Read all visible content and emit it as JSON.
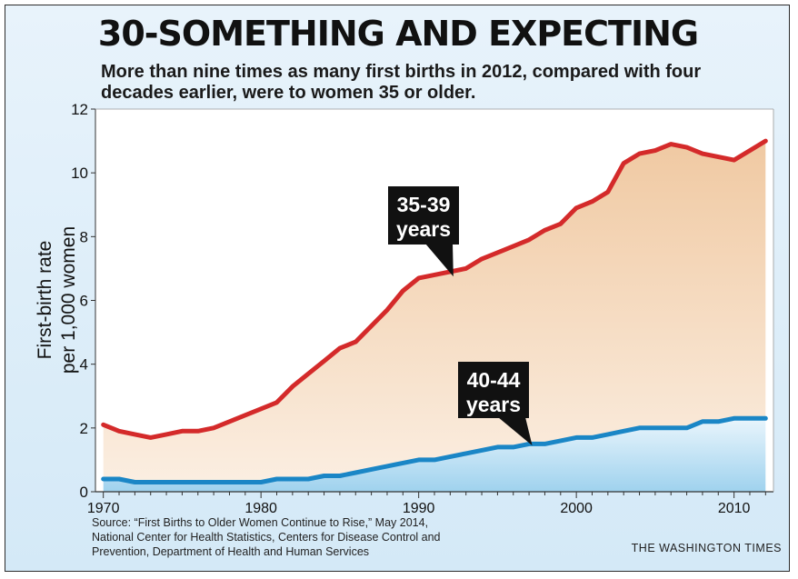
{
  "header": {
    "title": "30-SOMETHING AND EXPECTING",
    "subtitle": "More than nine times as many first births in 2012, compared with four decades earlier, were to women 35 or older."
  },
  "footer": {
    "source": "Source: “First Births to Older Women Continue to Rise,” May 2014,\nNational Center for Health Statistics, Centers for Disease Control and\nPrevention, Department of Health and Human Services",
    "credit": "THE WASHINGTON TIMES"
  },
  "colors": {
    "line_35_39": "#d42a2a",
    "line_40_44": "#1a86c6",
    "fill_35_39": "#f0c9a2",
    "fill_40_44": "#9fd2ee",
    "background": "#dcedf9"
  },
  "chart_data": {
    "type": "area",
    "title": "30-SOMETHING AND EXPECTING",
    "ylabel": "First-birth rate\nper 1,000 women",
    "xlabel": "",
    "xlim": [
      1969.5,
      2012.5
    ],
    "ylim": [
      0,
      12
    ],
    "x_ticks": [
      1970,
      1980,
      1990,
      2000,
      2010
    ],
    "y_ticks": [
      0,
      2,
      4,
      6,
      8,
      10,
      12
    ],
    "grid": false,
    "x": [
      1970,
      1971,
      1972,
      1973,
      1974,
      1975,
      1976,
      1977,
      1978,
      1979,
      1980,
      1981,
      1982,
      1983,
      1984,
      1985,
      1986,
      1987,
      1988,
      1989,
      1990,
      1991,
      1992,
      1993,
      1994,
      1995,
      1996,
      1997,
      1998,
      1999,
      2000,
      2001,
      2002,
      2003,
      2004,
      2005,
      2006,
      2007,
      2008,
      2009,
      2010,
      2011,
      2012
    ],
    "series": [
      {
        "name": "35-39\nyears",
        "values": [
          2.1,
          1.9,
          1.8,
          1.7,
          1.8,
          1.9,
          1.9,
          2.0,
          2.2,
          2.4,
          2.6,
          2.8,
          3.3,
          3.7,
          4.1,
          4.5,
          4.7,
          5.2,
          5.7,
          6.3,
          6.7,
          6.8,
          6.9,
          7.0,
          7.3,
          7.5,
          7.7,
          7.9,
          8.2,
          8.4,
          8.9,
          9.1,
          9.4,
          10.3,
          10.6,
          10.7,
          10.9,
          10.8,
          10.6,
          10.5,
          10.4,
          10.7,
          11.0
        ]
      },
      {
        "name": "40-44\nyears",
        "values": [
          0.4,
          0.4,
          0.3,
          0.3,
          0.3,
          0.3,
          0.3,
          0.3,
          0.3,
          0.3,
          0.3,
          0.4,
          0.4,
          0.4,
          0.5,
          0.5,
          0.6,
          0.7,
          0.8,
          0.9,
          1.0,
          1.0,
          1.1,
          1.2,
          1.3,
          1.4,
          1.4,
          1.5,
          1.5,
          1.6,
          1.7,
          1.7,
          1.8,
          1.9,
          2.0,
          2.0,
          2.0,
          2.0,
          2.2,
          2.2,
          2.3,
          2.3,
          2.3
        ]
      }
    ],
    "annotations": [
      "35-39\nyears",
      "40-44\nyears"
    ]
  }
}
